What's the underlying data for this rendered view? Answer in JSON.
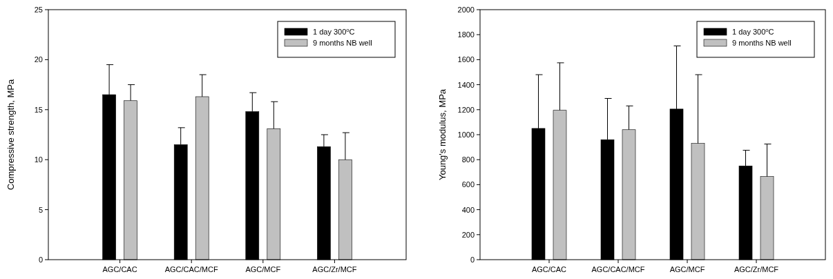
{
  "chart_data": [
    {
      "type": "bar",
      "ylabel": "Compressive strength, MPa",
      "categories": [
        "AGC/CAC",
        "AGC/CAC/MCF",
        "AGC/MCF",
        "AGC/Zr/MCF"
      ],
      "ylim": [
        0,
        25
      ],
      "yticks": [
        0,
        5,
        10,
        15,
        20,
        25
      ],
      "legend": "top right",
      "grid": false,
      "series": [
        {
          "name": "1 day 300$^{o}$C",
          "color": "#000000",
          "values": [
            16.5,
            11.5,
            14.8,
            11.3
          ],
          "errors": [
            [
              16.5,
              19.5
            ],
            [
              11.5,
              13.2
            ],
            [
              14.8,
              16.7
            ],
            [
              11.3,
              12.5
            ]
          ]
        },
        {
          "name": "9 months NB well",
          "color": "#c0c0c0",
          "values": [
            15.9,
            16.3,
            13.1,
            10.0
          ],
          "errors": [
            [
              15.9,
              17.5
            ],
            [
              16.3,
              18.5
            ],
            [
              13.1,
              15.8
            ],
            [
              10.0,
              12.7
            ]
          ]
        }
      ]
    },
    {
      "type": "bar",
      "ylabel": "Young's modulus, MPa",
      "categories": [
        "AGC/CAC",
        "AGC/CAC/MCF",
        "AGC/MCF",
        "AGC/Zr/MCF"
      ],
      "ylim": [
        0,
        2000
      ],
      "yticks": [
        0,
        200,
        400,
        600,
        800,
        1000,
        1200,
        1400,
        1600,
        1800,
        2000
      ],
      "legend": "top right",
      "grid": false,
      "series": [
        {
          "name": "1 day 300$^{o}$C",
          "color": "#000000",
          "values": [
            1050,
            960,
            1205,
            750
          ],
          "errors": [
            [
              1050,
              1480
            ],
            [
              960,
              1290
            ],
            [
              1205,
              1710
            ],
            [
              750,
              875
            ]
          ]
        },
        {
          "name": "9 months NB well",
          "color": "#c0c0c0",
          "values": [
            1195,
            1040,
            930,
            665
          ],
          "errors": [
            [
              1195,
              1575
            ],
            [
              1040,
              1230
            ],
            [
              930,
              1480
            ],
            [
              665,
              925
            ]
          ]
        }
      ]
    }
  ]
}
